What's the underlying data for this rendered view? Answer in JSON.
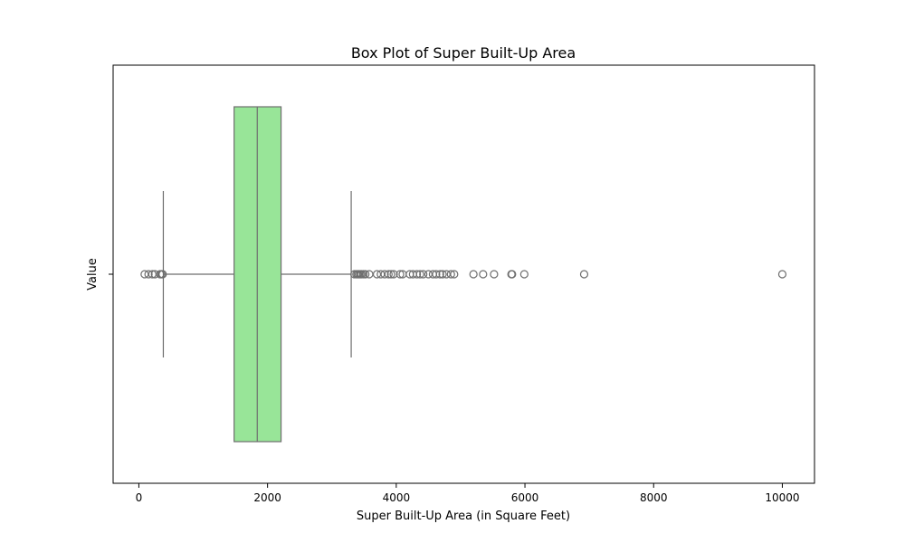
{
  "chart_data": {
    "type": "box",
    "orientation": "horizontal",
    "title": "Box Plot of Super Built-Up Area",
    "xlabel": "Super Built-Up Area (in Square Feet)",
    "ylabel": "Value",
    "xlim": [
      -400,
      10500
    ],
    "x_ticks": [
      0,
      2000,
      4000,
      6000,
      8000,
      10000
    ],
    "x_tick_labels": [
      "0",
      "2000",
      "4000",
      "6000",
      "8000",
      "10000"
    ],
    "grid": false,
    "legend": false,
    "colors": {
      "box_fill": "#98e598",
      "line": "#6e6e6e",
      "axes": "#000000",
      "background": "#ffffff"
    },
    "box": {
      "whisker_low": 380,
      "q1": 1480,
      "median": 1840,
      "q3": 2210,
      "whisker_high": 3300
    },
    "outliers": [
      90,
      150,
      210,
      250,
      330,
      350,
      370,
      3350,
      3380,
      3400,
      3420,
      3440,
      3460,
      3490,
      3520,
      3580,
      3700,
      3760,
      3820,
      3880,
      3920,
      3960,
      4060,
      4100,
      4210,
      4260,
      4320,
      4370,
      4420,
      4500,
      4570,
      4620,
      4680,
      4720,
      4780,
      4850,
      4900,
      5200,
      5350,
      5520,
      5790,
      5800,
      5990,
      6920,
      10000
    ]
  }
}
